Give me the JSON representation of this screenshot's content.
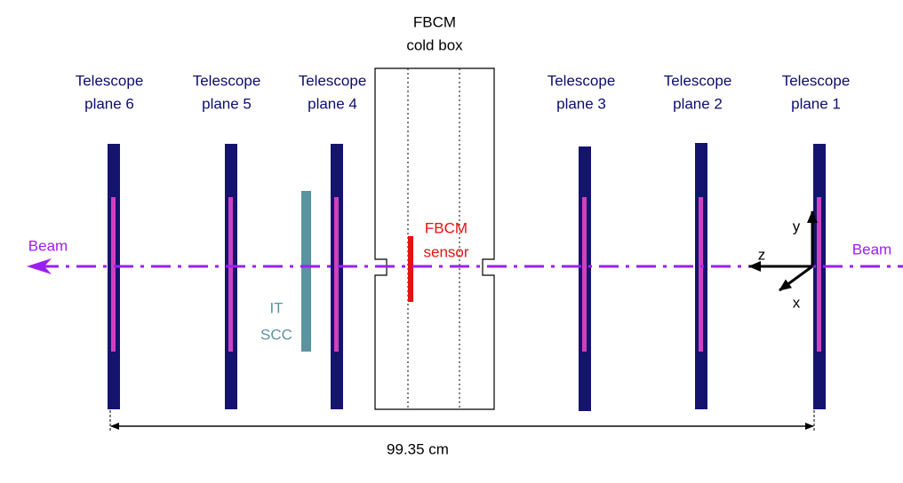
{
  "cold_box": {
    "title": "FBCM",
    "subtitle": "cold box"
  },
  "sensor": {
    "line1": "FBCM",
    "line2": "sensor"
  },
  "it_scc": {
    "line1": "IT",
    "line2": "SCC"
  },
  "planes": [
    {
      "line1": "Telescope",
      "line2": "plane 6"
    },
    {
      "line1": "Telescope",
      "line2": "plane 5"
    },
    {
      "line1": "Telescope",
      "line2": "plane 4"
    },
    {
      "line1": "Telescope",
      "line2": "plane 3"
    },
    {
      "line1": "Telescope",
      "line2": "plane 2"
    },
    {
      "line1": "Telescope",
      "line2": "plane 1"
    }
  ],
  "beam_left": "Beam",
  "beam_right": "Beam",
  "axes": {
    "x": "x",
    "y": "y",
    "z": "z"
  },
  "distance": "99.35 cm"
}
